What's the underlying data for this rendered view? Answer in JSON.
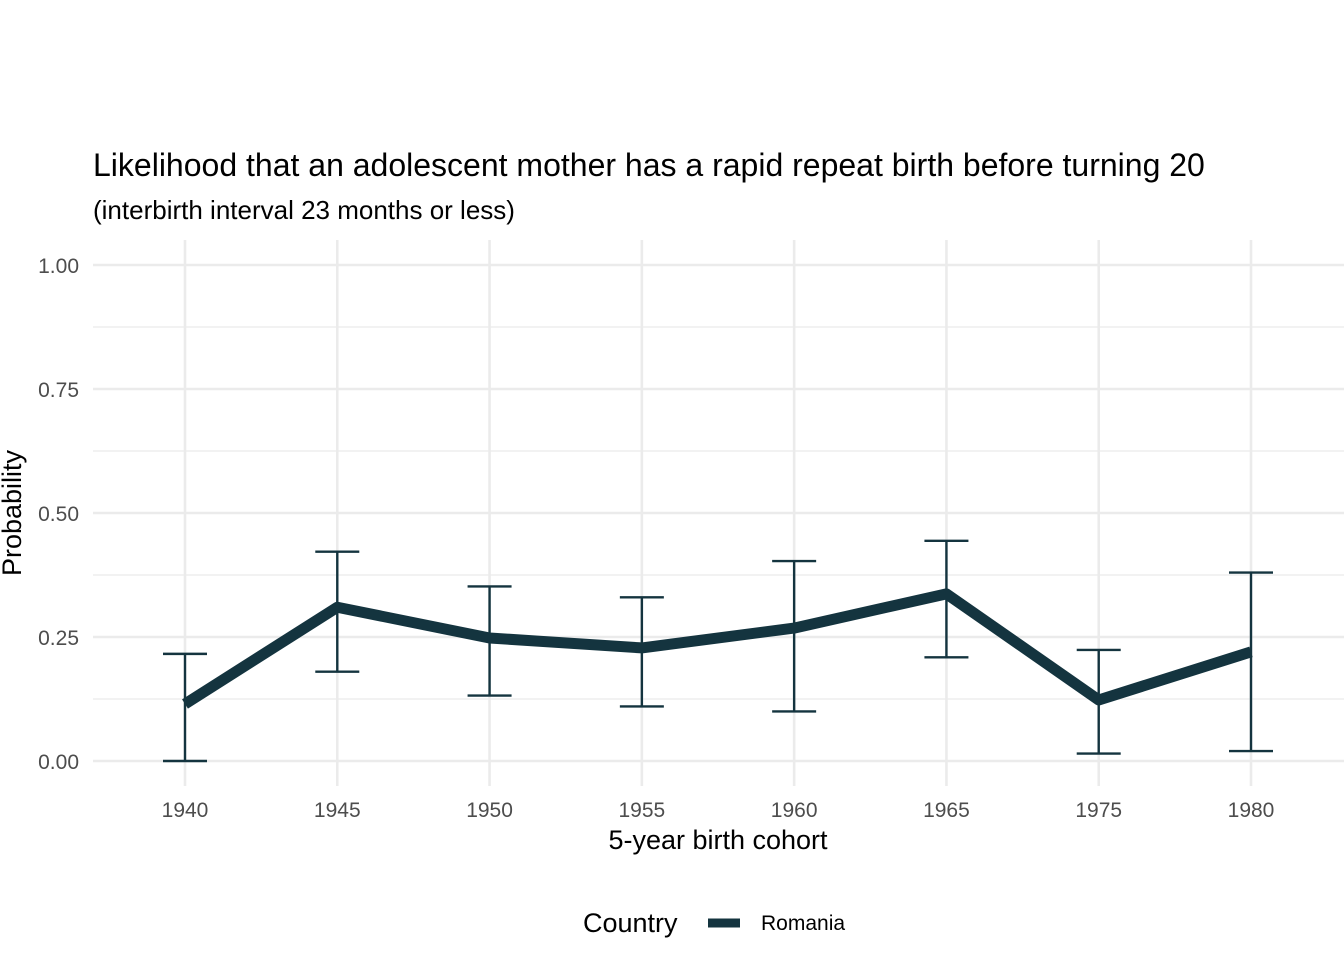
{
  "chart_data": {
    "type": "line",
    "title": "Likelihood that an adolescent mother has a rapid repeat birth before turning 20",
    "subtitle": "(interbirth interval 23 months or less)",
    "xlabel": "5-year birth cohort",
    "ylabel": "Probability",
    "categories": [
      "1940",
      "1945",
      "1950",
      "1955",
      "1960",
      "1965",
      "1975",
      "1980"
    ],
    "yticks": [
      "0.00",
      "0.25",
      "0.50",
      "0.75",
      "1.00"
    ],
    "ylim": [
      -0.05,
      1.05
    ],
    "grid": true,
    "legend": {
      "title": "Country",
      "position": "bottom"
    },
    "series": [
      {
        "name": "Romania",
        "color": "#14343f",
        "values": [
          0.115,
          0.31,
          0.248,
          0.228,
          0.268,
          0.337,
          0.123,
          0.22
        ],
        "lower": [
          0.0,
          0.18,
          0.132,
          0.11,
          0.1,
          0.209,
          0.015,
          0.02
        ],
        "upper": [
          0.216,
          0.422,
          0.352,
          0.33,
          0.403,
          0.444,
          0.224,
          0.38
        ]
      }
    ]
  }
}
